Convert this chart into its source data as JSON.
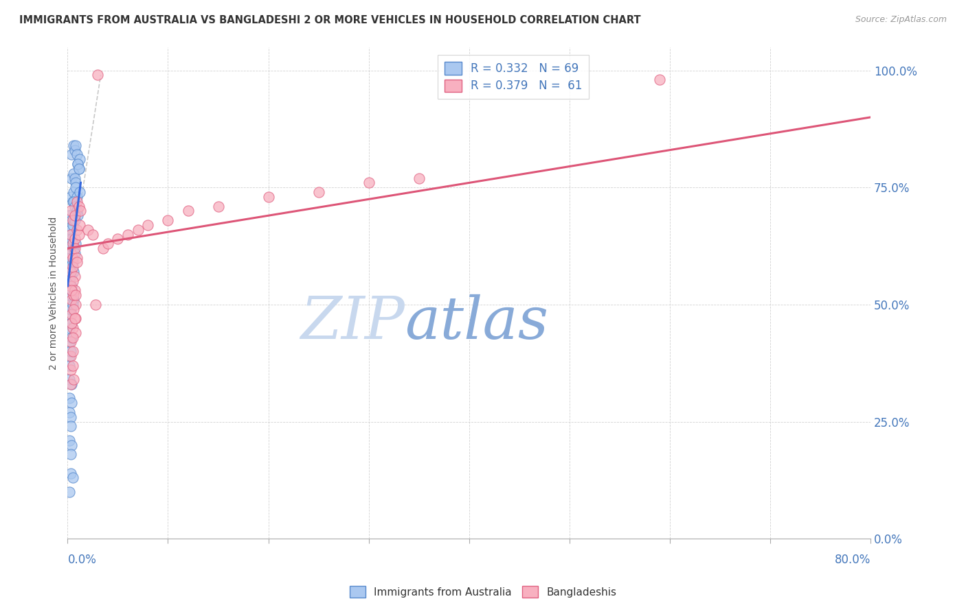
{
  "title": "IMMIGRANTS FROM AUSTRALIA VS BANGLADESHI 2 OR MORE VEHICLES IN HOUSEHOLD CORRELATION CHART",
  "source": "Source: ZipAtlas.com",
  "ylabel": "2 or more Vehicles in Household",
  "right_yticklabels": [
    "0.0%",
    "25.0%",
    "50.0%",
    "75.0%",
    "100.0%"
  ],
  "right_ytick_vals": [
    0.0,
    0.25,
    0.5,
    0.75,
    1.0
  ],
  "legend_label1": "R = 0.332   N = 69",
  "legend_label2": "R = 0.379   N =  61",
  "legend_bottom_label1": "Immigrants from Australia",
  "legend_bottom_label2": "Bangladeshis",
  "blue_color": "#aac8f0",
  "blue_edge_color": "#5588cc",
  "pink_color": "#f8b0c0",
  "pink_edge_color": "#e06080",
  "trend_blue": "#3366dd",
  "trend_pink": "#dd5577",
  "trend_gray": "#bbbbbb",
  "watermark_color": "#ccd8ee",
  "title_color": "#333333",
  "axis_label_color": "#4477bb",
  "xlim": [
    0,
    0.8
  ],
  "ylim": [
    0,
    1.05
  ],
  "blue_x": [
    0.004,
    0.006,
    0.007,
    0.008,
    0.009,
    0.01,
    0.011,
    0.012,
    0.004,
    0.006,
    0.007,
    0.008,
    0.01,
    0.011,
    0.003,
    0.005,
    0.006,
    0.008,
    0.009,
    0.012,
    0.002,
    0.004,
    0.006,
    0.007,
    0.009,
    0.01,
    0.002,
    0.003,
    0.005,
    0.007,
    0.002,
    0.003,
    0.004,
    0.006,
    0.008,
    0.002,
    0.003,
    0.005,
    0.007,
    0.002,
    0.003,
    0.004,
    0.006,
    0.002,
    0.004,
    0.006,
    0.002,
    0.003,
    0.005,
    0.002,
    0.004,
    0.002,
    0.004,
    0.002,
    0.003,
    0.002,
    0.002,
    0.004,
    0.002,
    0.004,
    0.002,
    0.003,
    0.003,
    0.002,
    0.004,
    0.003,
    0.003,
    0.005,
    0.002
  ],
  "blue_y": [
    0.82,
    0.84,
    0.83,
    0.84,
    0.82,
    0.8,
    0.79,
    0.81,
    0.77,
    0.78,
    0.77,
    0.76,
    0.8,
    0.79,
    0.73,
    0.72,
    0.74,
    0.75,
    0.73,
    0.74,
    0.69,
    0.68,
    0.72,
    0.71,
    0.7,
    0.69,
    0.65,
    0.66,
    0.67,
    0.68,
    0.62,
    0.63,
    0.64,
    0.62,
    0.63,
    0.58,
    0.6,
    0.59,
    0.61,
    0.55,
    0.56,
    0.54,
    0.57,
    0.52,
    0.53,
    0.51,
    0.48,
    0.49,
    0.5,
    0.45,
    0.46,
    0.42,
    0.43,
    0.39,
    0.4,
    0.37,
    0.34,
    0.33,
    0.3,
    0.29,
    0.27,
    0.26,
    0.24,
    0.21,
    0.2,
    0.18,
    0.14,
    0.13,
    0.1
  ],
  "pink_x": [
    0.003,
    0.005,
    0.007,
    0.009,
    0.011,
    0.013,
    0.003,
    0.005,
    0.007,
    0.009,
    0.011,
    0.003,
    0.005,
    0.007,
    0.009,
    0.003,
    0.005,
    0.007,
    0.009,
    0.003,
    0.005,
    0.007,
    0.004,
    0.006,
    0.008,
    0.004,
    0.006,
    0.008,
    0.005,
    0.008,
    0.012,
    0.02,
    0.025,
    0.03,
    0.035,
    0.04,
    0.05,
    0.06,
    0.07,
    0.08,
    0.1,
    0.12,
    0.15,
    0.2,
    0.25,
    0.3,
    0.35,
    0.028,
    0.59,
    0.003,
    0.005,
    0.003,
    0.005,
    0.003,
    0.005,
    0.003,
    0.006,
    0.004,
    0.007,
    0.004,
    0.008
  ],
  "pink_y": [
    0.7,
    0.68,
    0.69,
    0.72,
    0.71,
    0.7,
    0.65,
    0.63,
    0.64,
    0.66,
    0.65,
    0.61,
    0.6,
    0.62,
    0.6,
    0.57,
    0.58,
    0.56,
    0.59,
    0.54,
    0.55,
    0.53,
    0.51,
    0.52,
    0.5,
    0.48,
    0.49,
    0.47,
    0.45,
    0.44,
    0.67,
    0.66,
    0.65,
    0.99,
    0.62,
    0.63,
    0.64,
    0.65,
    0.66,
    0.67,
    0.68,
    0.7,
    0.71,
    0.73,
    0.74,
    0.76,
    0.77,
    0.5,
    0.98,
    0.42,
    0.43,
    0.39,
    0.4,
    0.36,
    0.37,
    0.33,
    0.34,
    0.46,
    0.47,
    0.53,
    0.52
  ],
  "blue_trend_x": [
    0.0,
    0.013
  ],
  "blue_trend_y": [
    0.54,
    0.76
  ],
  "pink_trend_x": [
    0.0,
    0.8
  ],
  "pink_trend_y": [
    0.62,
    0.9
  ],
  "gray_trend_x": [
    0.0,
    0.033
  ],
  "gray_trend_y": [
    0.54,
    0.99
  ]
}
